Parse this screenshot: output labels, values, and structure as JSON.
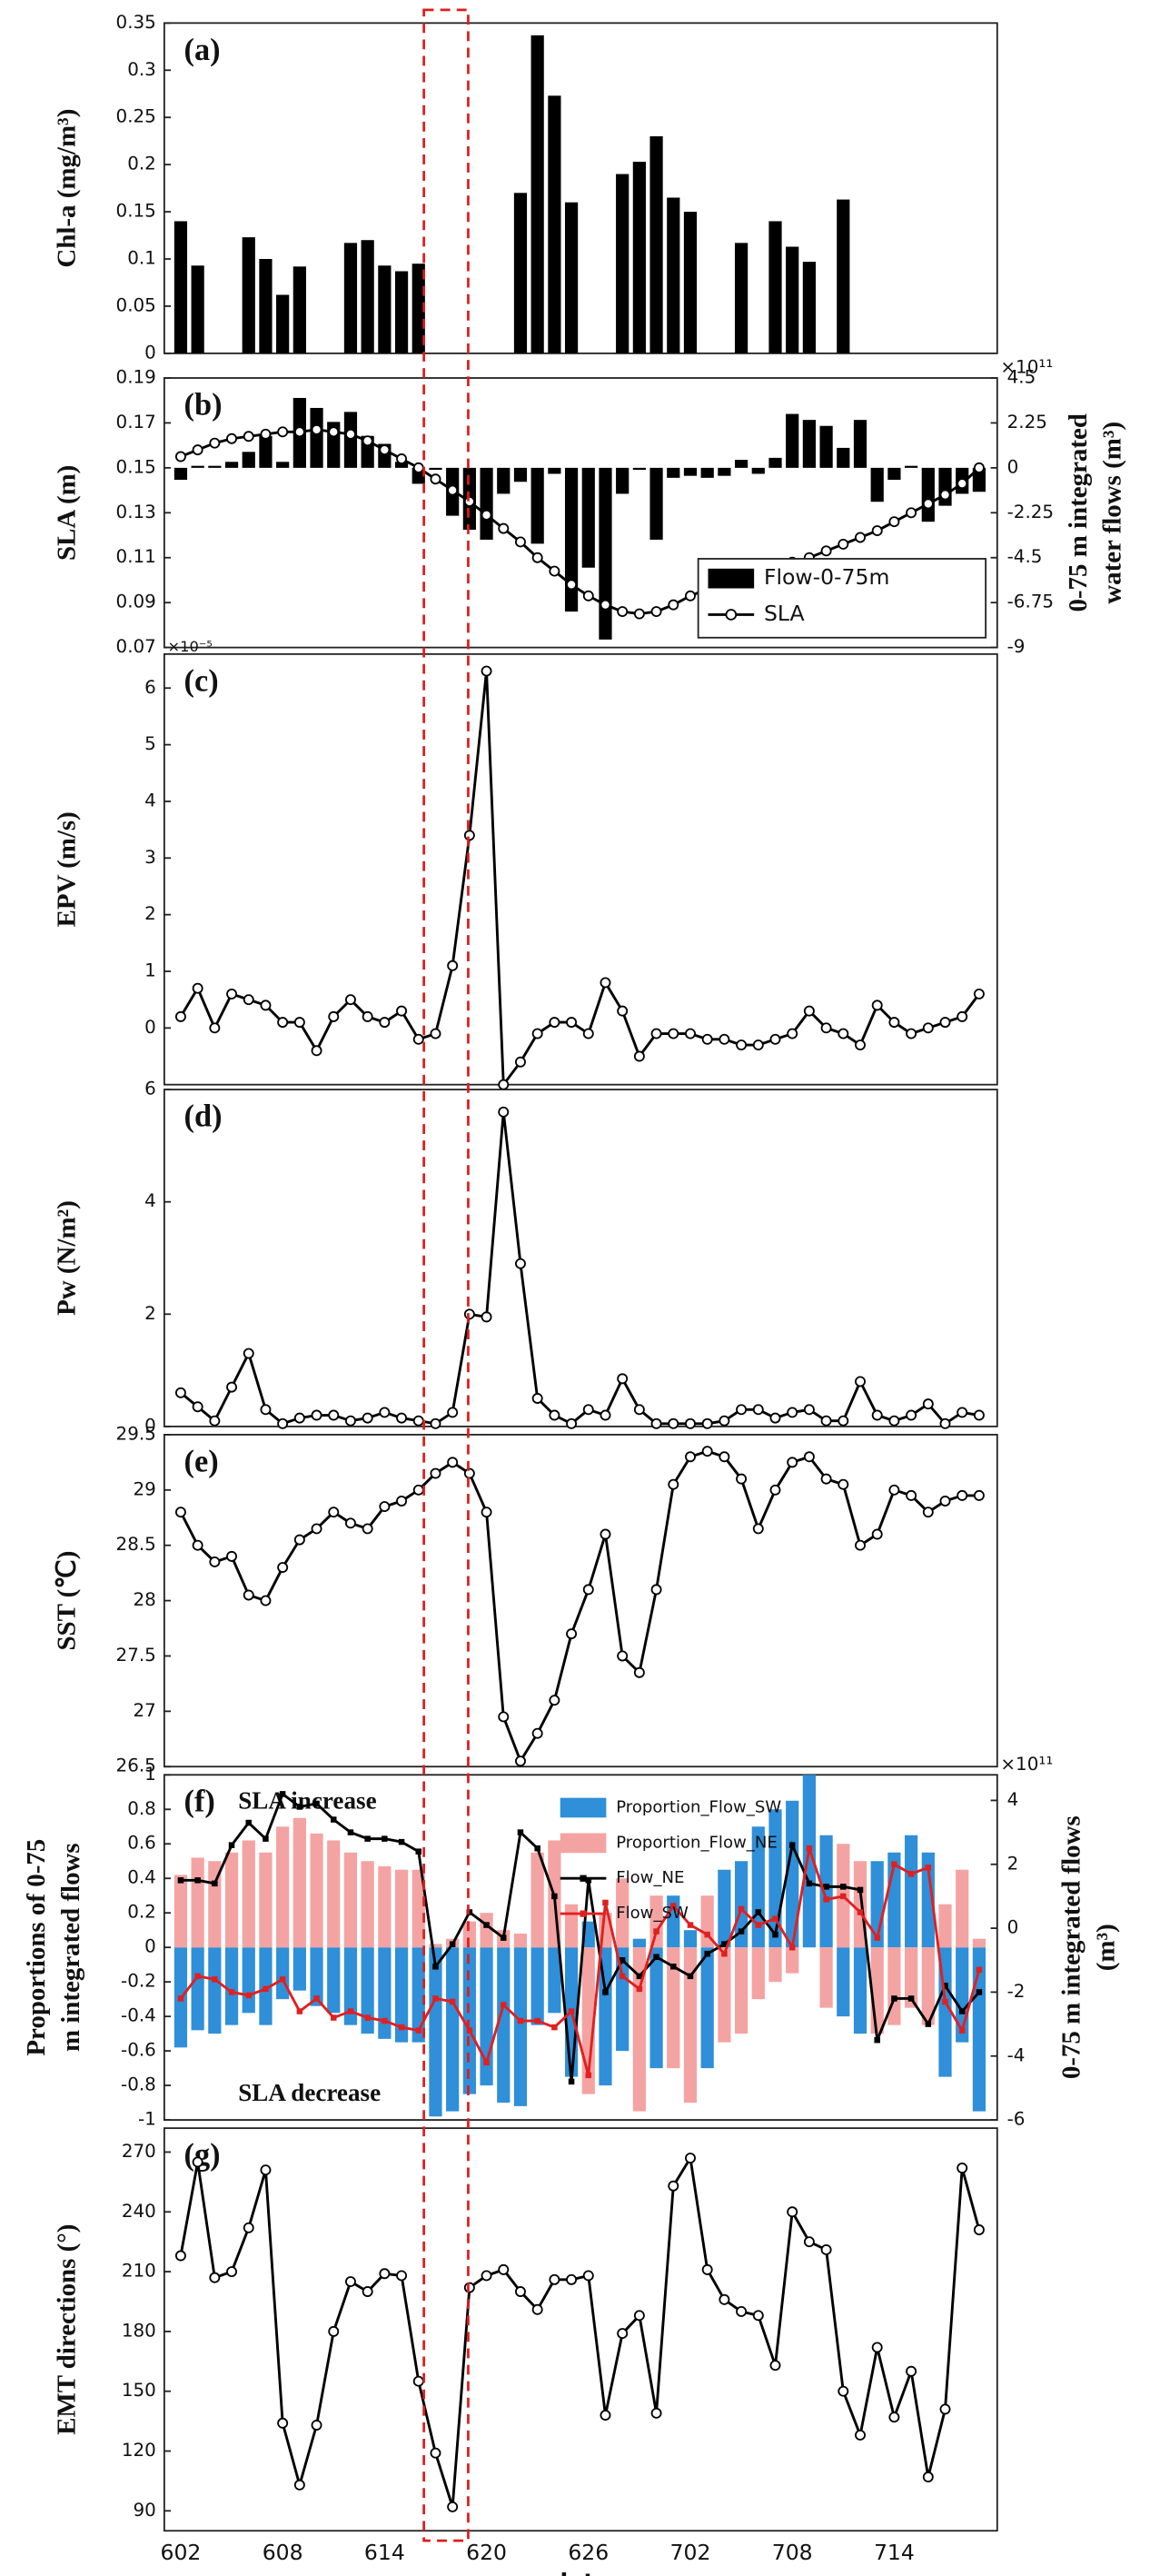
{
  "chart_data": [
    {
      "type": "bar",
      "panel_label": "(a)",
      "ylabel": "Chl-a (mg/m³)",
      "color": "#000000",
      "ylim": [
        0,
        0.35
      ],
      "yticks": [
        0,
        0.05,
        0.1,
        0.15,
        0.2,
        0.25,
        0.3,
        0.35
      ],
      "values": [
        0.14,
        0.093,
        null,
        null,
        0.123,
        0.1,
        0.062,
        0.092,
        null,
        null,
        0.117,
        0.12,
        0.093,
        0.087,
        0.095,
        null,
        null,
        null,
        null,
        null,
        0.17,
        0.337,
        0.273,
        0.16,
        null,
        null,
        0.19,
        0.203,
        0.23,
        0.165,
        0.15,
        null,
        null,
        0.117,
        null,
        0.14,
        0.113,
        0.097,
        null,
        0.163,
        null,
        null,
        null,
        null,
        null,
        null,
        null,
        null
      ]
    },
    {
      "type": "combo",
      "panel_label": "(b)",
      "ylabel": "SLA (m)",
      "y2label": [
        "0-75 m integrated",
        "water flows (m³)"
      ],
      "y2_multiplier": "×10¹¹",
      "ylim": [
        0.07,
        0.19
      ],
      "yticks": [
        0.07,
        0.09,
        0.11,
        0.13,
        0.15,
        0.17,
        0.19
      ],
      "y2lim": [
        -9,
        4.5
      ],
      "y2ticks": [
        -9,
        -6.75,
        -4.5,
        -2.25,
        0,
        2.25,
        4.5
      ],
      "legend": "lower right",
      "series": [
        {
          "name": "Flow-0-75m",
          "type": "bar",
          "axis": "y2",
          "color": "#000000",
          "values": [
            -0.6,
            0.1,
            0.1,
            0.3,
            0.8,
            1.6,
            0.3,
            3.5,
            3.0,
            2.3,
            2.8,
            1.6,
            1.2,
            0.3,
            -0.8,
            -0.1,
            -2.4,
            -3.1,
            -3.6,
            -1.3,
            -0.7,
            -3.8,
            -0.3,
            -7.2,
            -5.0,
            -8.6,
            -1.3,
            -0.1,
            -3.6,
            -0.5,
            -0.4,
            -0.5,
            -0.4,
            0.4,
            -0.3,
            0.5,
            2.7,
            2.4,
            2.1,
            1.0,
            2.4,
            -1.7,
            -0.6,
            0.1,
            -2.7,
            -1.9,
            -1.3,
            -1.2
          ]
        },
        {
          "name": "SLA",
          "type": "line",
          "marker": "circle",
          "color": "#000000",
          "values": [
            0.155,
            0.158,
            0.161,
            0.163,
            0.164,
            0.165,
            0.166,
            0.166,
            0.167,
            0.166,
            0.165,
            0.162,
            0.158,
            0.154,
            0.15,
            0.145,
            0.14,
            0.135,
            0.129,
            0.123,
            0.117,
            0.11,
            0.104,
            0.098,
            0.093,
            0.089,
            0.086,
            0.085,
            0.086,
            0.089,
            0.093,
            0.096,
            0.099,
            0.101,
            0.103,
            0.105,
            0.108,
            0.11,
            0.113,
            0.116,
            0.119,
            0.122,
            0.126,
            0.13,
            0.134,
            0.138,
            0.143,
            0.15
          ]
        }
      ]
    },
    {
      "type": "line",
      "panel_label": "(c)",
      "ylabel": "EPV (m/s)",
      "multiplier": "×10⁻⁵",
      "color": "#000000",
      "marker": "circle",
      "ylim": [
        -1,
        6.6
      ],
      "yticks": [
        0,
        1,
        2,
        3,
        4,
        5,
        6
      ],
      "values": [
        0.2,
        0.7,
        0,
        0.6,
        0.5,
        0.4,
        0.1,
        0.1,
        -0.4,
        0.2,
        0.5,
        0.2,
        0.1,
        0.3,
        -0.2,
        -0.1,
        1.1,
        3.4,
        6.3,
        -1.0,
        -0.6,
        -0.1,
        0.1,
        0.1,
        -0.1,
        0.8,
        0.3,
        -0.5,
        -0.1,
        -0.1,
        -0.1,
        -0.2,
        -0.2,
        -0.3,
        -0.3,
        -0.2,
        -0.1,
        0.3,
        0,
        -0.1,
        -0.3,
        0.4,
        0.1,
        -0.1,
        0,
        0.1,
        0.2,
        0.6
      ]
    },
    {
      "type": "line",
      "panel_label": "(d)",
      "ylabel": "Pw  (N/m²)",
      "color": "#000000",
      "marker": "circle",
      "ylim": [
        0,
        6
      ],
      "yticks": [
        0,
        2,
        4,
        6
      ],
      "values": [
        0.6,
        0.35,
        0.1,
        0.7,
        1.3,
        0.3,
        0.05,
        0.15,
        0.2,
        0.2,
        0.1,
        0.15,
        0.25,
        0.15,
        0.1,
        0.05,
        0.25,
        2.0,
        1.95,
        5.6,
        2.9,
        0.5,
        0.2,
        0.05,
        0.3,
        0.2,
        0.85,
        0.3,
        0.05,
        0.05,
        0.05,
        0.05,
        0.1,
        0.3,
        0.3,
        0.15,
        0.25,
        0.3,
        0.1,
        0.1,
        0.8,
        0.2,
        0.1,
        0.2,
        0.4,
        0.05,
        0.25,
        0.2
      ]
    },
    {
      "type": "line",
      "panel_label": "(e)",
      "ylabel": "SST (℃)",
      "color": "#000000",
      "marker": "circle",
      "ylim": [
        26.5,
        29.5
      ],
      "yticks": [
        26.5,
        27,
        27.5,
        28,
        28.5,
        29,
        29.5
      ],
      "values": [
        28.8,
        28.5,
        28.35,
        28.4,
        28.05,
        28.0,
        28.3,
        28.55,
        28.65,
        28.8,
        28.7,
        28.65,
        28.85,
        28.9,
        29.0,
        29.15,
        29.25,
        29.15,
        28.8,
        26.95,
        26.55,
        26.8,
        27.1,
        27.7,
        28.1,
        28.6,
        27.5,
        27.35,
        28.1,
        29.05,
        29.3,
        29.35,
        29.3,
        29.1,
        28.65,
        29.0,
        29.25,
        29.3,
        29.1,
        29.05,
        28.5,
        28.6,
        29.0,
        28.95,
        28.8,
        28.9,
        28.95,
        28.95
      ]
    },
    {
      "type": "combo",
      "panel_label": "(f)",
      "ylabel": [
        "Proportions of 0-75",
        "m integrated flows"
      ],
      "y2label": [
        "0-75 m integrated flows",
        "(m³)"
      ],
      "y2_multiplier": "×10¹¹",
      "annotations": [
        "SLA increase",
        "SLA decrease"
      ],
      "legend": "upper center",
      "ylim": [
        -1,
        1
      ],
      "yticks": [
        -1,
        -0.8,
        -0.6,
        -0.4,
        -0.2,
        0,
        0.2,
        0.4,
        0.6,
        0.8,
        1
      ],
      "y2lim": [
        -6,
        4.8
      ],
      "y2ticks": [
        -6,
        -4,
        -2,
        0,
        2,
        4
      ],
      "series": [
        {
          "name": "Proportion_Flow_SW",
          "type": "bar",
          "color": "#2f8fd8",
          "values": [
            -0.58,
            -0.48,
            -0.5,
            -0.45,
            -0.38,
            -0.45,
            -0.3,
            -0.25,
            -0.34,
            -0.38,
            -0.45,
            -0.5,
            -0.53,
            -0.55,
            -0.55,
            -0.98,
            -0.95,
            -0.85,
            -0.8,
            -0.9,
            -0.92,
            -0.45,
            -0.38,
            -0.75,
            0.15,
            -0.8,
            -0.6,
            0.05,
            -0.7,
            0.3,
            0.1,
            -0.7,
            0.45,
            0.5,
            0.7,
            0.8,
            0.85,
            1,
            0.65,
            -0.4,
            -0.5,
            0.5,
            0.55,
            0.65,
            0.55,
            -0.75,
            -0.55,
            -0.95
          ]
        },
        {
          "name": "Proportion_Flow_NE",
          "type": "bar",
          "color": "#f4a3a3",
          "values": [
            0.42,
            0.52,
            0.5,
            0.55,
            0.62,
            0.55,
            0.7,
            0.75,
            0.66,
            0.62,
            0.55,
            0.5,
            0.47,
            0.45,
            0.45,
            0.02,
            0.05,
            0.15,
            0.2,
            0.1,
            0.08,
            0.55,
            0.62,
            0.25,
            -0.85,
            0.2,
            0.4,
            -0.95,
            0.3,
            -0.7,
            -0.9,
            0.3,
            -0.55,
            -0.5,
            -0.3,
            -0.2,
            -0.15,
            0,
            -0.35,
            0.6,
            0.5,
            -0.5,
            -0.45,
            -0.35,
            -0.45,
            0.25,
            0.45,
            0.05
          ]
        },
        {
          "name": "Flow_NE",
          "type": "line",
          "axis": "y2",
          "marker": "square",
          "color": "#000000",
          "values": [
            1.5,
            1.5,
            1.4,
            2.6,
            3.3,
            2.8,
            4.2,
            3.8,
            3.9,
            3.4,
            3.0,
            2.8,
            2.8,
            2.7,
            2.4,
            -1.2,
            -0.5,
            0.5,
            0.1,
            -0.3,
            3.0,
            2.5,
            1.0,
            -4.8,
            1.5,
            -2.0,
            -1.0,
            -1.5,
            -0.9,
            -1.2,
            -1.5,
            -0.8,
            -0.5,
            -0.1,
            0.5,
            -0.2,
            2.6,
            1.4,
            1.3,
            1.3,
            1.2,
            -3.5,
            -2.2,
            -2.2,
            -3.0,
            -1.8,
            -2.6,
            -2.0
          ]
        },
        {
          "name": "Flow_SW",
          "type": "line",
          "axis": "y2",
          "marker": "square",
          "color": "#e02020",
          "values": [
            -2.2,
            -1.5,
            -1.6,
            -2.0,
            -2.1,
            -1.9,
            -1.6,
            -2.6,
            -2.2,
            -2.8,
            -2.6,
            -2.8,
            -2.9,
            -3.1,
            -3.2,
            -2.2,
            -2.3,
            -3.2,
            -4.2,
            -2.4,
            -2.9,
            -2.9,
            -3.1,
            -2.6,
            -4.6,
            0.8,
            -1.5,
            -1.9,
            -0.1,
            0.7,
            0.1,
            -0.2,
            -0.8,
            0.6,
            0.1,
            0.3,
            -0.6,
            2.5,
            0.9,
            1.0,
            0.5,
            -0.3,
            2.0,
            1.7,
            1.9,
            -2.3,
            -3.2,
            -1.3
          ]
        }
      ]
    },
    {
      "type": "line",
      "panel_label": "(g)",
      "ylabel": "EMT directions (°)",
      "xlabel": "date",
      "color": "#000000",
      "marker": "circle",
      "ylim": [
        80,
        282
      ],
      "yticks": [
        90,
        120,
        150,
        180,
        210,
        240,
        270
      ],
      "categories": [
        "602",
        null,
        null,
        null,
        null,
        null,
        "608",
        null,
        null,
        null,
        null,
        null,
        "614",
        null,
        null,
        null,
        null,
        null,
        "620",
        null,
        null,
        null,
        null,
        null,
        "626",
        null,
        null,
        null,
        null,
        null,
        "702",
        null,
        null,
        null,
        null,
        null,
        "708",
        null,
        null,
        null,
        null,
        null,
        "714",
        null,
        null,
        null,
        null,
        null
      ],
      "values": [
        218,
        265,
        207,
        210,
        232,
        261,
        134,
        103,
        133,
        180,
        205,
        200,
        209,
        208,
        155,
        119,
        92,
        202,
        208,
        211,
        200,
        191,
        206,
        206,
        208,
        138,
        179,
        188,
        139,
        253,
        267,
        211,
        196,
        190,
        188,
        163,
        240,
        225,
        221,
        150,
        128,
        172,
        137,
        160,
        107,
        141,
        262,
        231
      ]
    }
  ]
}
